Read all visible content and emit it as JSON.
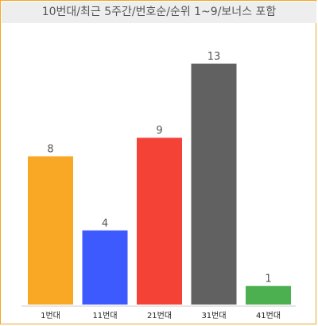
{
  "chart_data": {
    "type": "bar",
    "title": "10번대/최근 5주간/번호순/순위 1~9/보너스 포함",
    "categories": [
      "1번대",
      "11번대",
      "21번대",
      "31번대",
      "41번대"
    ],
    "values": [
      8,
      4,
      9,
      13,
      1
    ],
    "colors": [
      "#f9a825",
      "#3d5afe",
      "#f44336",
      "#616161",
      "#4caf50"
    ],
    "ylim": [
      0,
      13
    ],
    "grid": false,
    "legend": "none"
  }
}
